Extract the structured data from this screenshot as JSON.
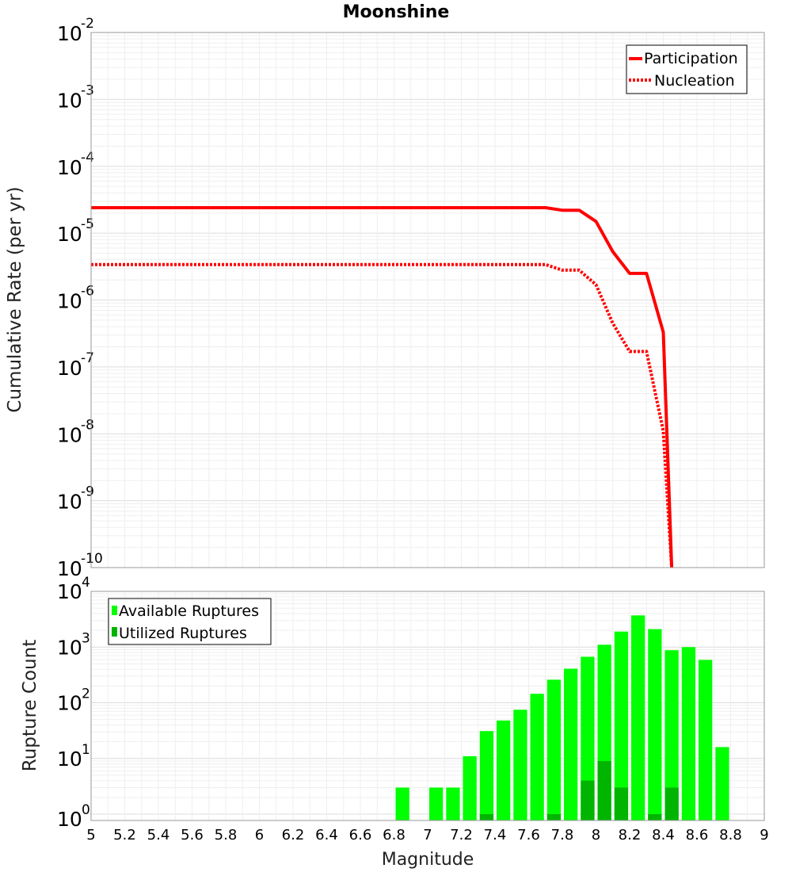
{
  "title": "Moonshine",
  "chart_data": [
    {
      "type": "line",
      "title": "Moonshine",
      "xlabel": "Magnitude",
      "ylabel": "Cumulative Rate (per yr)",
      "yscale": "log",
      "xlim": [
        5,
        9
      ],
      "ylim": [
        1e-10,
        0.01
      ],
      "y_tick_exponents": [
        "-2",
        "-3",
        "-4",
        "-5",
        "-6",
        "-7",
        "-8",
        "-9",
        "-10"
      ],
      "legend_position": "top-right",
      "series": [
        {
          "name": "Participation",
          "style": "solid",
          "color": "#ff0000",
          "x": [
            5.0,
            7.7,
            7.8,
            7.9,
            8.0,
            8.1,
            8.2,
            8.3,
            8.4,
            8.45
          ],
          "y": [
            2.4e-05,
            2.4e-05,
            2.2e-05,
            2.2e-05,
            1.5e-05,
            5.3e-06,
            2.5e-06,
            2.5e-06,
            3.3e-07,
            1e-10
          ]
        },
        {
          "name": "Nucleation",
          "style": "dotted",
          "color": "#ff0000",
          "x": [
            5.0,
            7.7,
            7.8,
            7.9,
            8.0,
            8.1,
            8.2,
            8.3,
            8.4,
            8.45
          ],
          "y": [
            3.4e-06,
            3.4e-06,
            2.8e-06,
            2.8e-06,
            1.7e-06,
            4.5e-07,
            1.7e-07,
            1.7e-07,
            1.1e-08,
            1e-10
          ]
        }
      ]
    },
    {
      "type": "bar",
      "xlabel": "Magnitude",
      "ylabel": "Rupture Count",
      "yscale": "log",
      "xlim": [
        5,
        9
      ],
      "ylim": [
        0.77,
        10000
      ],
      "y_tick_exponents": [
        "4",
        "3",
        "2",
        "1",
        "0"
      ],
      "x_ticks": [
        "5",
        "5.2",
        "5.4",
        "5.6",
        "5.8",
        "6",
        "6.2",
        "6.4",
        "6.6",
        "6.8",
        "7",
        "7.2",
        "7.4",
        "7.6",
        "7.8",
        "8",
        "8.2",
        "8.4",
        "8.6",
        "8.8",
        "9"
      ],
      "legend_position": "top-left",
      "bin_width": 0.1,
      "series": [
        {
          "name": "Available Ruptures",
          "color": "#00ff00",
          "x": [
            6.85,
            7.05,
            7.15,
            7.25,
            7.35,
            7.45,
            7.55,
            7.65,
            7.75,
            7.85,
            7.95,
            8.05,
            8.15,
            8.25,
            8.35,
            8.45,
            8.55,
            8.65,
            8.75
          ],
          "values": [
            3,
            3,
            3,
            11,
            31,
            48,
            75,
            145,
            260,
            410,
            670,
            1100,
            1900,
            3700,
            2100,
            880,
            1000,
            590,
            16
          ]
        },
        {
          "name": "Utilized Ruptures",
          "color": "#00b400",
          "x": [
            7.35,
            7.75,
            7.95,
            8.05,
            8.15,
            8.35,
            8.45
          ],
          "values": [
            1,
            1,
            4,
            9,
            3,
            1,
            3
          ]
        }
      ]
    }
  ]
}
